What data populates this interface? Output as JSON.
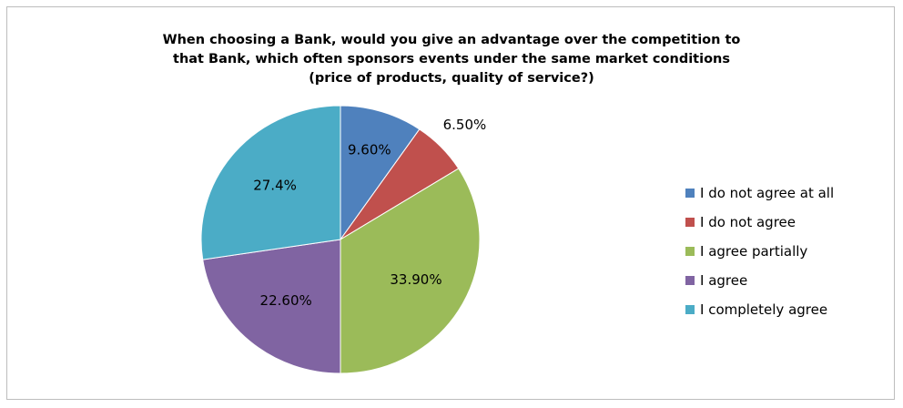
{
  "chart_data": {
    "type": "pie",
    "title_lines": [
      "When choosing a Bank, would you give an advantage over the competition to",
      "that Bank, which often sponsors events under the same market conditions",
      "(price of products,  quality of service?)"
    ],
    "legend_position": "right",
    "slices": [
      {
        "label": "I do not agree at all",
        "value": 9.6,
        "data_label": "9.60%",
        "color": "#4f81bd"
      },
      {
        "label": "I do not agree",
        "value": 6.5,
        "data_label": "6.50%",
        "color": "#c0504d"
      },
      {
        "label": "I agree partially",
        "value": 33.9,
        "data_label": "33.90%",
        "color": "#9bbb59"
      },
      {
        "label": "I agree",
        "value": 22.6,
        "data_label": "22.60%",
        "color": "#8064a2"
      },
      {
        "label": "I completely agree",
        "value": 27.4,
        "data_label": "27.4%",
        "color": "#4bacc6"
      }
    ]
  }
}
